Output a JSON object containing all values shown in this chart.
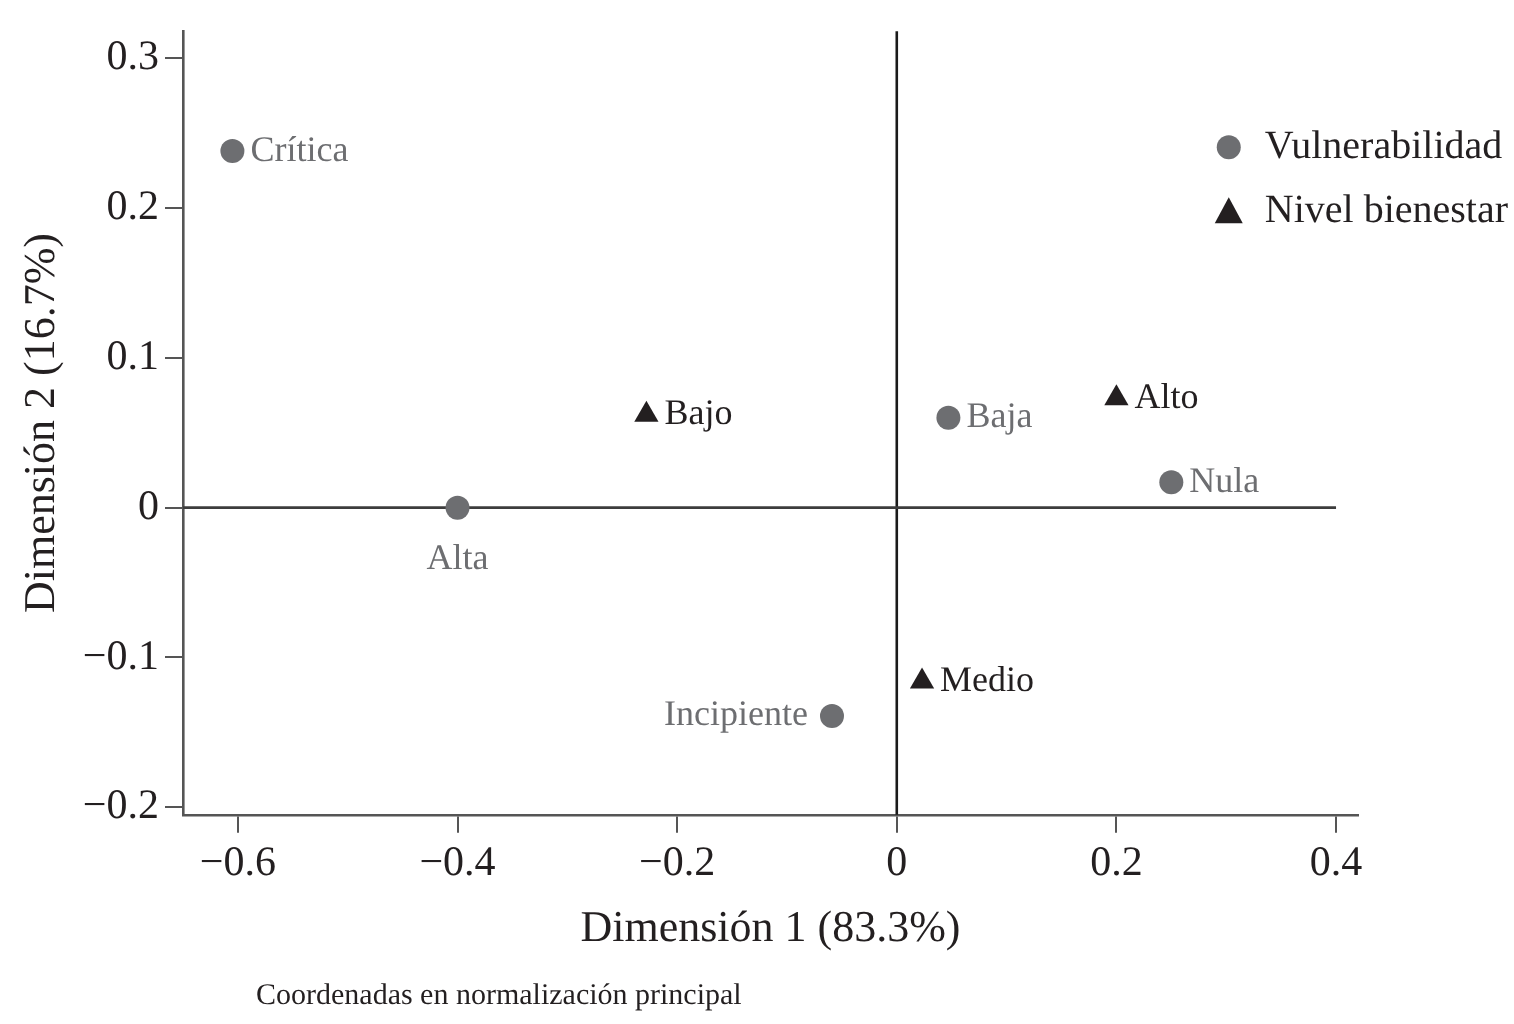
{
  "chart_data": {
    "type": "scatter",
    "xlabel": "Dimensión 1 (83.3%)",
    "ylabel": "Dimensión 2 (16.7%)",
    "series": [
      {
        "name": "Vulnerabilidad",
        "color": "#6d6e71",
        "marker": "circle",
        "x": [
          -0.605,
          -0.4,
          -0.059,
          0.047,
          0.25
        ],
        "values": [
          0.238,
          0,
          -0.139,
          0.06,
          0.017
        ]
      },
      {
        "name": "Nivel bienestar",
        "color": "#231f20",
        "marker": "triangle",
        "x": [
          -0.228,
          0.2,
          0.023
        ],
        "values": [
          0.062,
          0.073,
          -0.116
        ]
      }
    ],
    "annotations": [
      {
        "text": "Crítica",
        "x": -0.605,
        "y": 0.238
      },
      {
        "text": "Alta",
        "x": -0.4,
        "y": 0
      },
      {
        "text": "Incipiente",
        "x": -0.059,
        "y": -0.139
      },
      {
        "text": "Baja",
        "x": 0.047,
        "y": 0.06
      },
      {
        "text": "Nula",
        "x": 0.25,
        "y": 0.017
      },
      {
        "text": "Bajo",
        "x": -0.228,
        "y": 0.062
      },
      {
        "text": "Alto",
        "x": 0.2,
        "y": 0.073
      },
      {
        "text": "Medio",
        "x": 0.023,
        "y": -0.116
      },
      "Coordenadas en normalización principal"
    ],
    "ref_lines": [
      {
        "axis": "x",
        "value": 0,
        "color": "#1a1a1a"
      },
      {
        "axis": "y",
        "value": 0,
        "color": "#3d3d3d"
      }
    ],
    "xlim": [
      -0.65,
      0.42
    ],
    "xticks": [
      -0.6,
      -0.4,
      -0.2,
      0,
      0.2,
      0.4
    ],
    "ylim": [
      -0.205,
      0.318
    ],
    "yticks": [
      -0.2,
      -0.1,
      0,
      0.1,
      0.2,
      0.3
    ],
    "legend": "top right"
  }
}
